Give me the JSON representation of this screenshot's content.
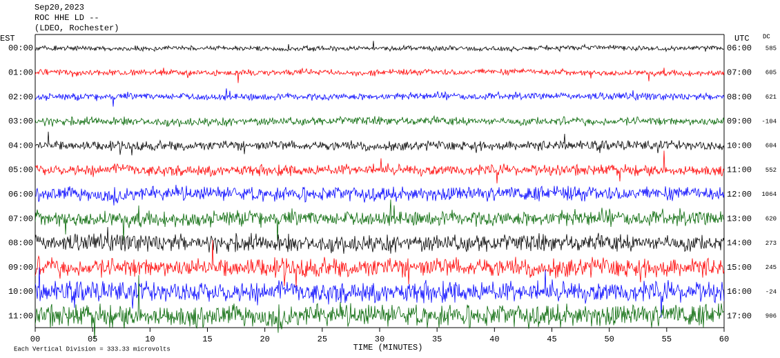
{
  "chart_data": {
    "type": "helicorder",
    "title_lines": [
      "Sep20,2023",
      "ROC HHE LD --",
      "(LDEO, Rochester)"
    ],
    "left_axis_label": "EST",
    "right_axis_label": "UTC",
    "dc_label": "DC",
    "x_label": "TIME (MINUTES)",
    "footnote": "Each Vertical Division =  333.33 microvolts",
    "xlim": [
      0,
      60
    ],
    "xticks": [
      {
        "value": 0,
        "label": "00"
      },
      {
        "value": 5,
        "label": "05"
      },
      10,
      15,
      20,
      25,
      30,
      35,
      40,
      45,
      50,
      55,
      60
    ],
    "rows": [
      {
        "est": "00:00",
        "utc": "06:00",
        "dc": 585,
        "color": "#000000"
      },
      {
        "est": "01:00",
        "utc": "07:00",
        "dc": 605,
        "color": "#ff0000"
      },
      {
        "est": "02:00",
        "utc": "08:00",
        "dc": 621,
        "color": "#0000ff"
      },
      {
        "est": "03:00",
        "utc": "09:00",
        "dc": -104,
        "color": "#006400"
      },
      {
        "est": "04:00",
        "utc": "10:00",
        "dc": 604,
        "color": "#000000"
      },
      {
        "est": "05:00",
        "utc": "11:00",
        "dc": 552,
        "color": "#ff0000"
      },
      {
        "est": "06:00",
        "utc": "12:00",
        "dc": 1064,
        "color": "#0000ff"
      },
      {
        "est": "07:00",
        "utc": "13:00",
        "dc": 620,
        "color": "#006400"
      },
      {
        "est": "08:00",
        "utc": "14:00",
        "dc": 273,
        "color": "#000000"
      },
      {
        "est": "09:00",
        "utc": "15:00",
        "dc": 245,
        "color": "#ff0000"
      },
      {
        "est": "10:00",
        "utc": "16:00",
        "dc": -24,
        "color": "#0000ff"
      },
      {
        "est": "11:00",
        "utc": "17:00",
        "dc": 906,
        "color": "#006400"
      }
    ]
  }
}
